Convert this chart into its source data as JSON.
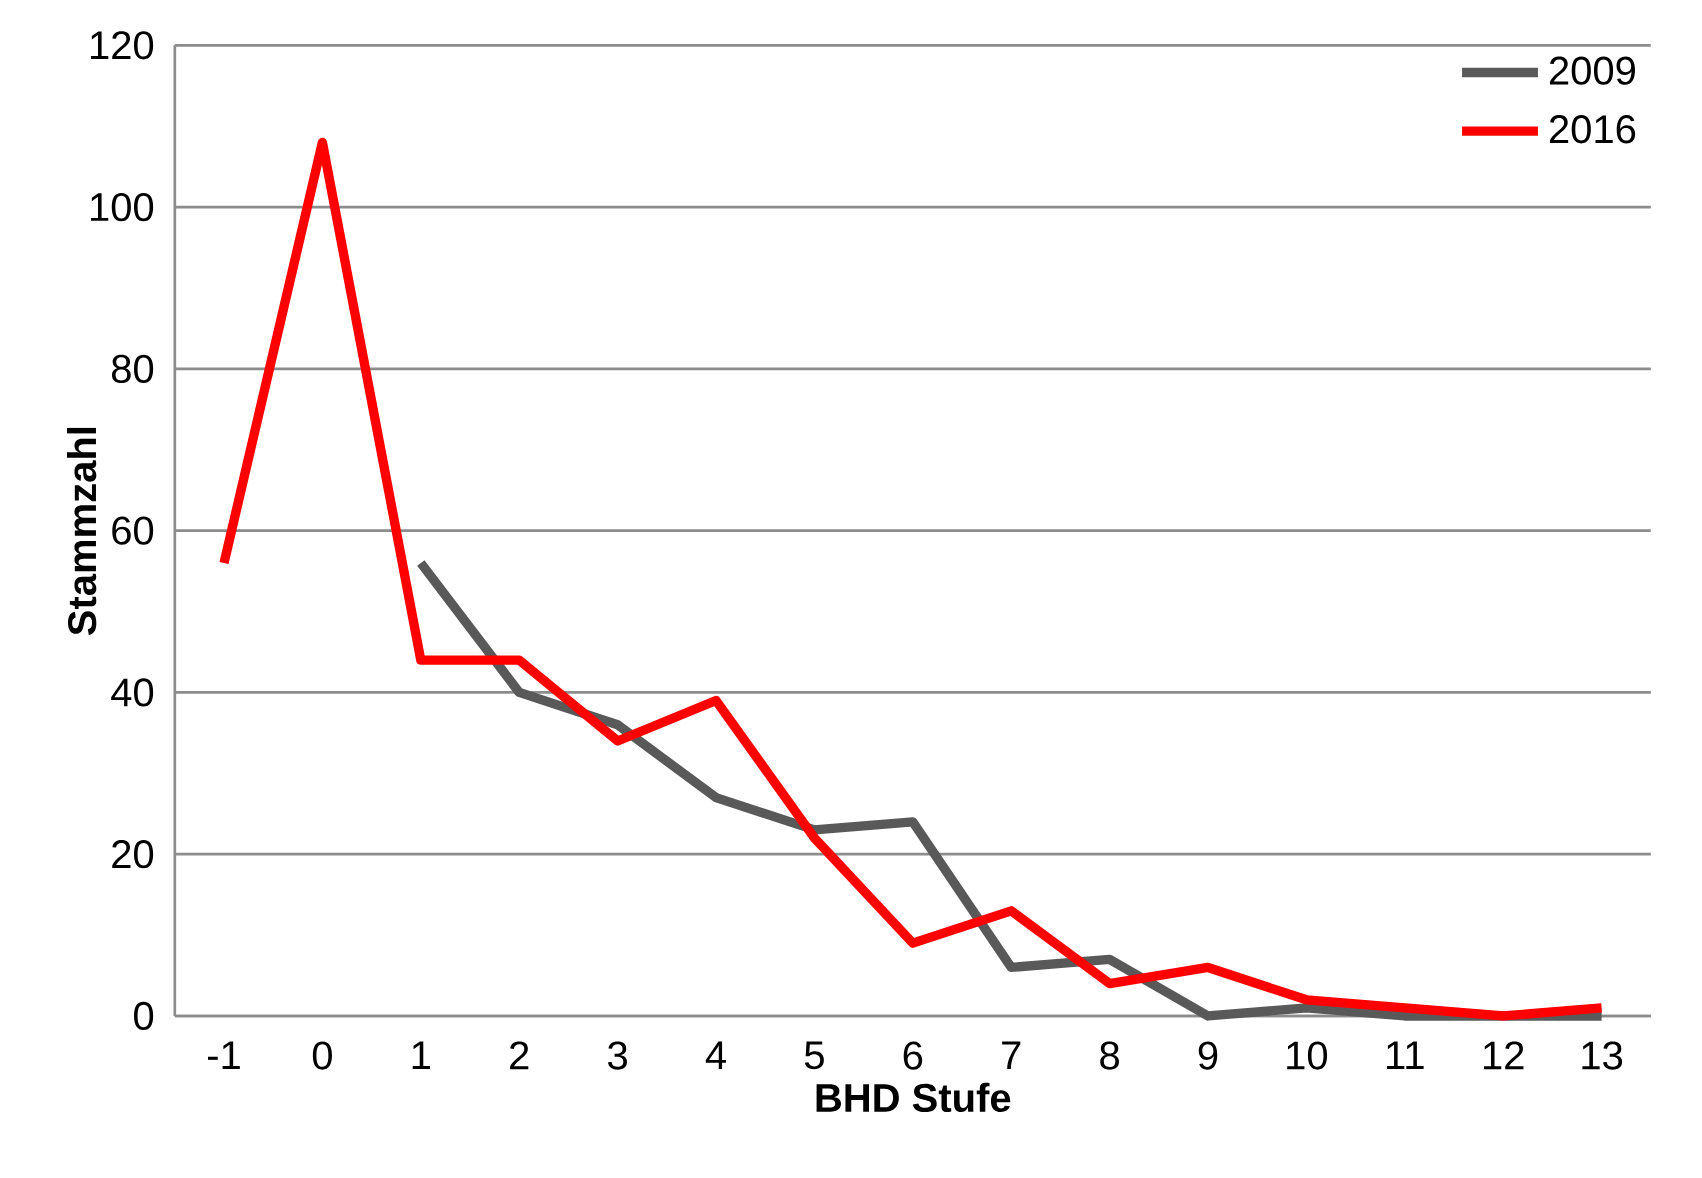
{
  "chart_data": {
    "type": "line",
    "xlabel": "BHD Stufe",
    "ylabel": "Stammzahl",
    "categories": [
      "-1",
      "0",
      "1",
      "2",
      "3",
      "4",
      "5",
      "6",
      "7",
      "8",
      "9",
      "10",
      "11",
      "12",
      "13"
    ],
    "series": [
      {
        "name": "2009",
        "color": "#595959",
        "values": [
          null,
          null,
          56,
          40,
          36,
          27,
          23,
          24,
          6,
          7,
          0,
          1,
          0,
          0,
          0
        ]
      },
      {
        "name": "2016",
        "color": "#ff0000",
        "values": [
          56,
          108,
          44,
          44,
          34,
          39,
          22,
          9,
          13,
          4,
          6,
          2,
          1,
          0,
          1
        ]
      }
    ],
    "ylim": [
      0,
      120
    ],
    "yticks": [
      0,
      20,
      40,
      60,
      80,
      100,
      120
    ],
    "grid": "y",
    "legend": "top right",
    "marker": "none",
    "line_style": "solid"
  }
}
